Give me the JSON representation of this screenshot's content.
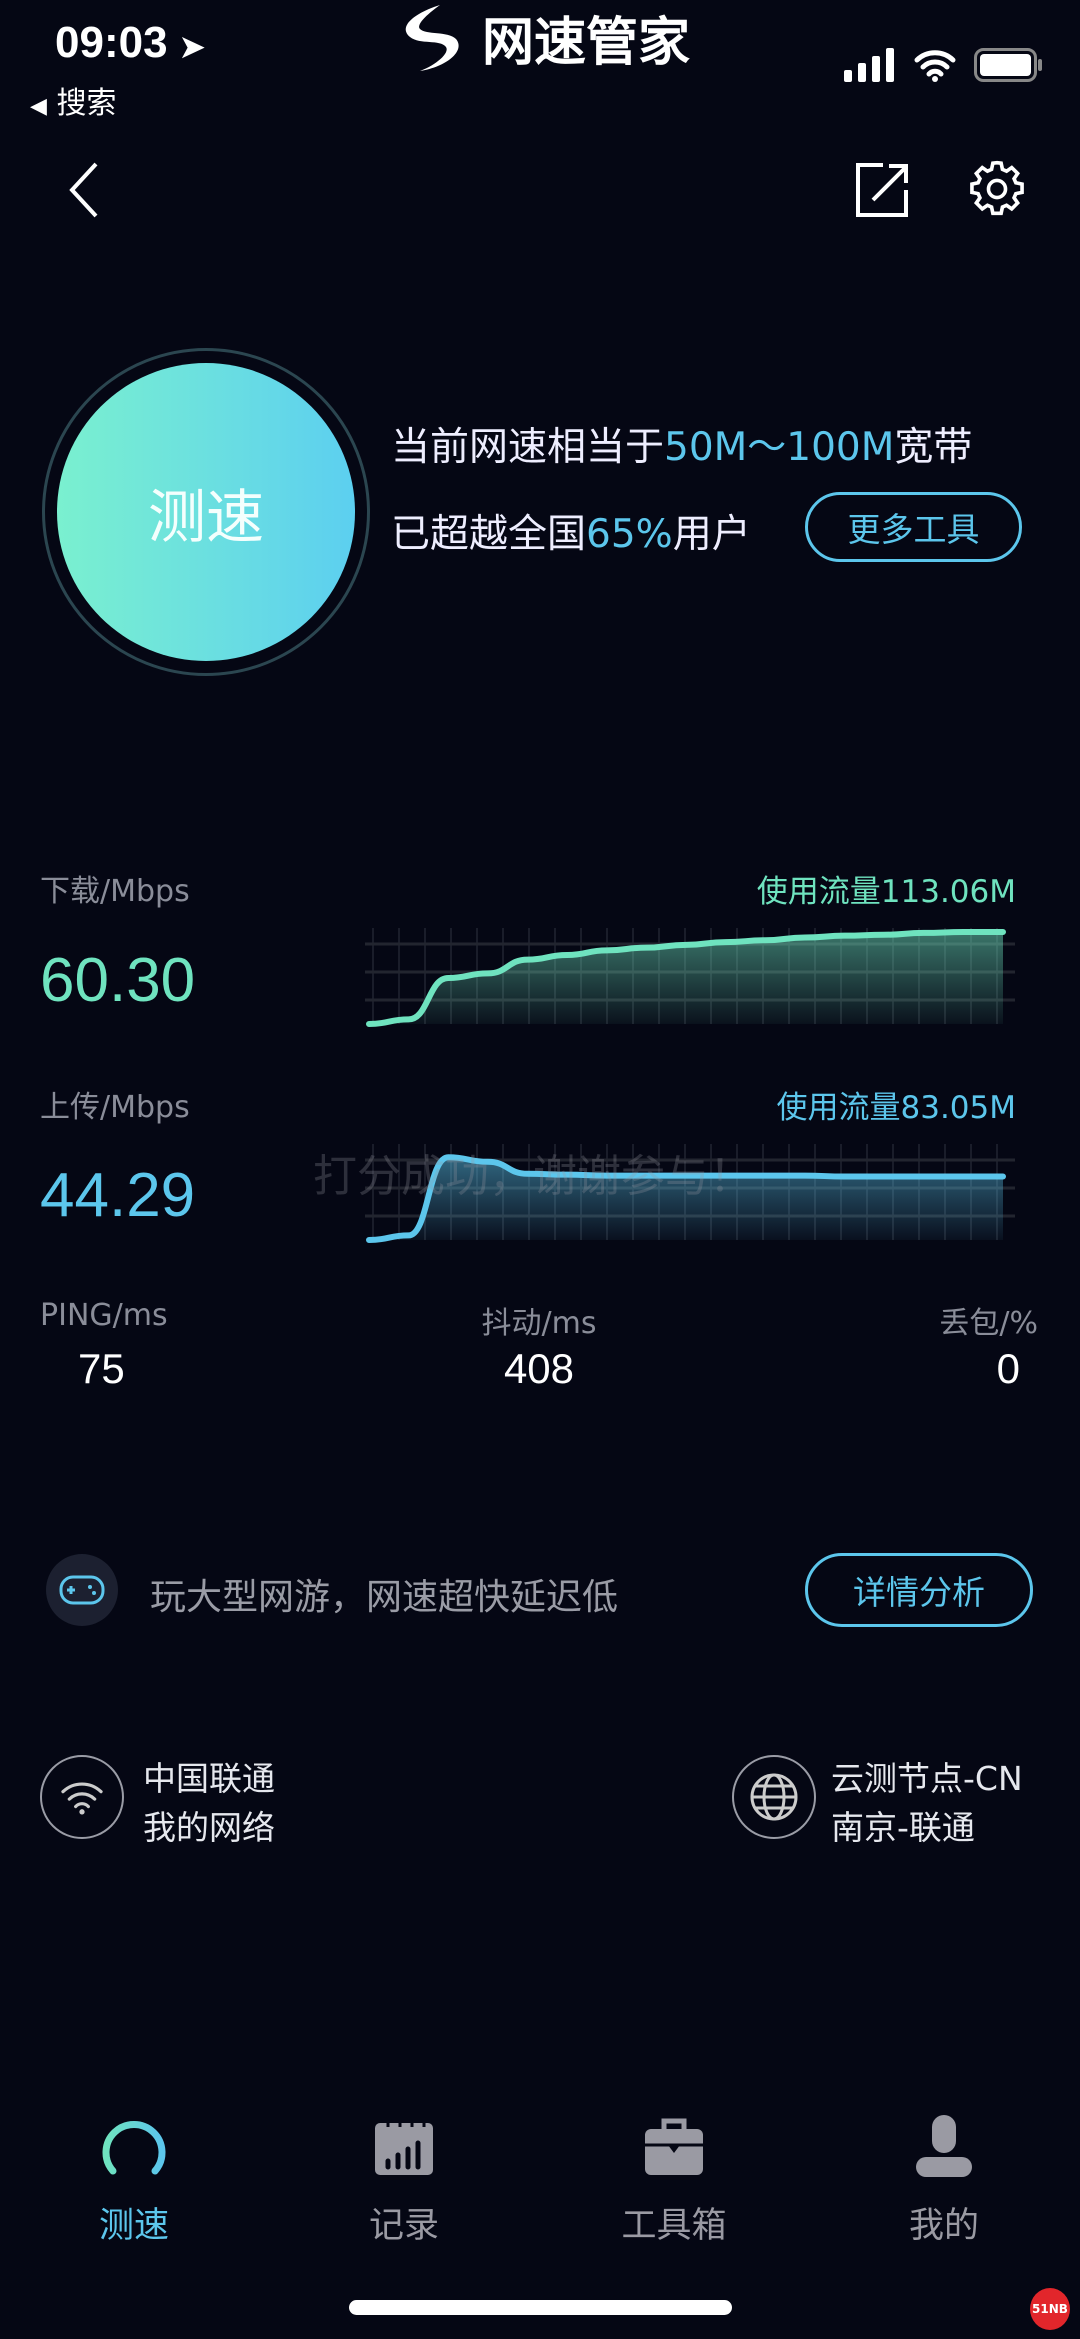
{
  "status_bar": {
    "time": "09:03",
    "back_app": "搜索"
  },
  "nav": {
    "title": "网速管家",
    "back_icon": "chevron-left-icon",
    "share_icon": "share-icon",
    "settings_icon": "gear-icon"
  },
  "speed_test": {
    "button_label": "测速",
    "line1_prefix": "当前网速相当于",
    "line1_highlight": "50M～100M",
    "line1_suffix": "宽带",
    "line2_prefix": "已超越全国",
    "line2_highlight": "65%",
    "line2_suffix": "用户",
    "more_tools": "更多工具"
  },
  "download": {
    "label": "下载/Mbps",
    "value": "60.30",
    "traffic": "使用流量113.06M",
    "color": "#6fe3bf"
  },
  "upload": {
    "label": "上传/Mbps",
    "value": "44.29",
    "traffic": "使用流量83.05M",
    "color": "#5cc6ec"
  },
  "toast": "打分成功，谢谢参与！",
  "metrics": {
    "ping_label": "PING/ms",
    "ping": "75",
    "jitter_label": "抖动/ms",
    "jitter": "408",
    "loss_label": "丢包/%",
    "loss": "0"
  },
  "game": {
    "text": "玩大型网游，网速超快延迟低",
    "button": "详情分析"
  },
  "network": {
    "carrier": "中国联通",
    "network_label": "我的网络",
    "node": "云测节点-CN",
    "node_location": "南京-联通"
  },
  "tabs": [
    {
      "label": "测速",
      "active": true
    },
    {
      "label": "记录"
    },
    {
      "label": "工具箱"
    },
    {
      "label": "我的"
    }
  ],
  "badge": "51NB"
}
